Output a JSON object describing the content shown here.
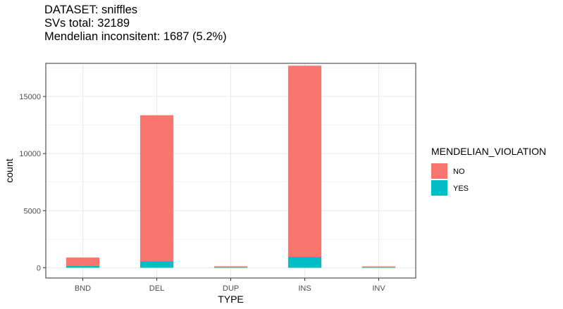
{
  "chart_data": {
    "type": "bar",
    "stacked": true,
    "title_lines": [
      "DATASET: sniffles",
      "SVs total: 32189",
      "Mendelian inconsitent: 1687 (5.2%)"
    ],
    "xlabel": "TYPE",
    "ylabel": "count",
    "categories": [
      "BND",
      "DEL",
      "DUP",
      "INS",
      "INV"
    ],
    "series": [
      {
        "name": "NO",
        "values": [
          750,
          12780,
          110,
          16750,
          100
        ],
        "color": "#F8766D"
      },
      {
        "name": "YES",
        "values": [
          150,
          580,
          15,
          950,
          20
        ],
        "color": "#00BFC4"
      }
    ],
    "ylim": [
      -900,
      17900
    ],
    "yticks": [
      0,
      5000,
      10000,
      15000
    ],
    "yticklabels": [
      "0",
      "5000",
      "10000",
      "15000"
    ],
    "grid": true,
    "legend": {
      "title": "MENDELIAN_VIOLATION",
      "position": "right"
    },
    "panel_background": "#ffffff",
    "grid_color": "#ebebeb",
    "border_color": "#333333"
  }
}
